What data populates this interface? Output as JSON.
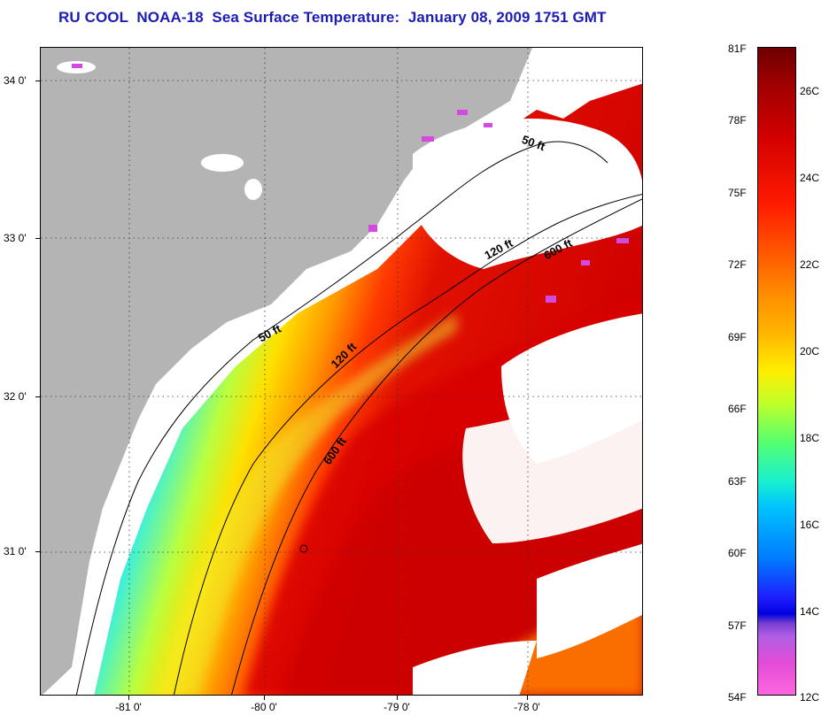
{
  "title": "RU COOL  NOAA-18  Sea Surface Temperature:  January 08, 2009 1751 GMT",
  "latitude_labels": [
    "34 0'",
    "33 0'",
    "32 0'",
    "31 0'"
  ],
  "longitude_labels": [
    "-81 0'",
    "-80 0'",
    "-79 0'",
    "-78 0'"
  ],
  "depth_contour_labels": [
    "50 ft",
    "120 ft",
    "600 ft",
    "50 ft",
    "120 ft",
    "600 ft"
  ],
  "colorbar": {
    "fahrenheit_labels": [
      "81F",
      "78F",
      "75F",
      "72F",
      "69F",
      "66F",
      "63F",
      "60F",
      "57F",
      "54F"
    ],
    "celsius_labels": [
      "26C",
      "24C",
      "22C",
      "20C",
      "18C",
      "16C",
      "14C",
      "12C"
    ]
  },
  "colors": {
    "title": "#1c1cb4",
    "land": "#b4b4b4",
    "cloud": "#ffffff",
    "gulf_stream": "#d80000"
  }
}
